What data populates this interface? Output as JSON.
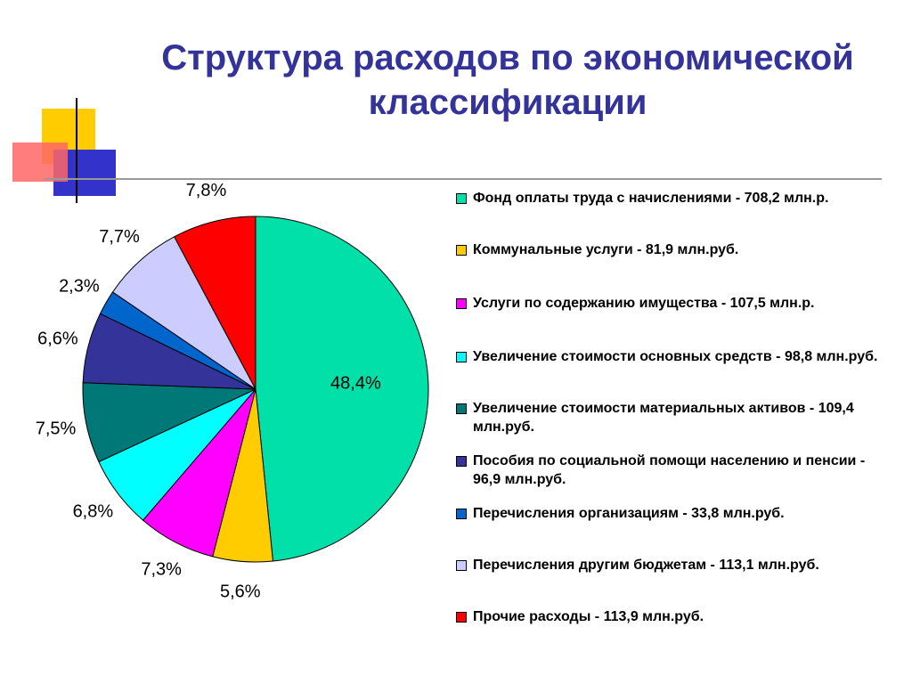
{
  "chart_data": {
    "type": "pie",
    "title": "Структура расходов по экономической классификации",
    "categories": [
      "Фонд оплаты труда с начислениями - 708,2 млн.р.",
      "Коммунальные услуги - 81,9 млн.руб.",
      "Услуги по содержанию имущества - 107,5 млн.р.",
      "Увеличение стоимости основных средств - 98,8 млн.руб.",
      "Увеличение стоимости материальных активов - 109,4 млн.руб.",
      "Пособия по социальной помощи населению и пенсии - 96,9 млн.руб.",
      "Перечисления организациям - 33,8 млн.руб.",
      "Перечисления другим бюджетам - 113,1 млн.руб.",
      "Прочие расходы - 113,9 млн.руб."
    ],
    "values": [
      48.4,
      5.6,
      7.3,
      6.8,
      7.5,
      6.6,
      2.3,
      7.7,
      7.8
    ],
    "value_labels": [
      "48,4%",
      "5,6%",
      "7,3%",
      "6,8%",
      "7,5%",
      "6,6%",
      "2,3%",
      "7,7%",
      "7,8%"
    ],
    "colors": [
      "#00e0a8",
      "#ffcc00",
      "#ff00ff",
      "#00ffff",
      "#007878",
      "#333399",
      "#0066cc",
      "#ccccff",
      "#ff0000"
    ]
  }
}
